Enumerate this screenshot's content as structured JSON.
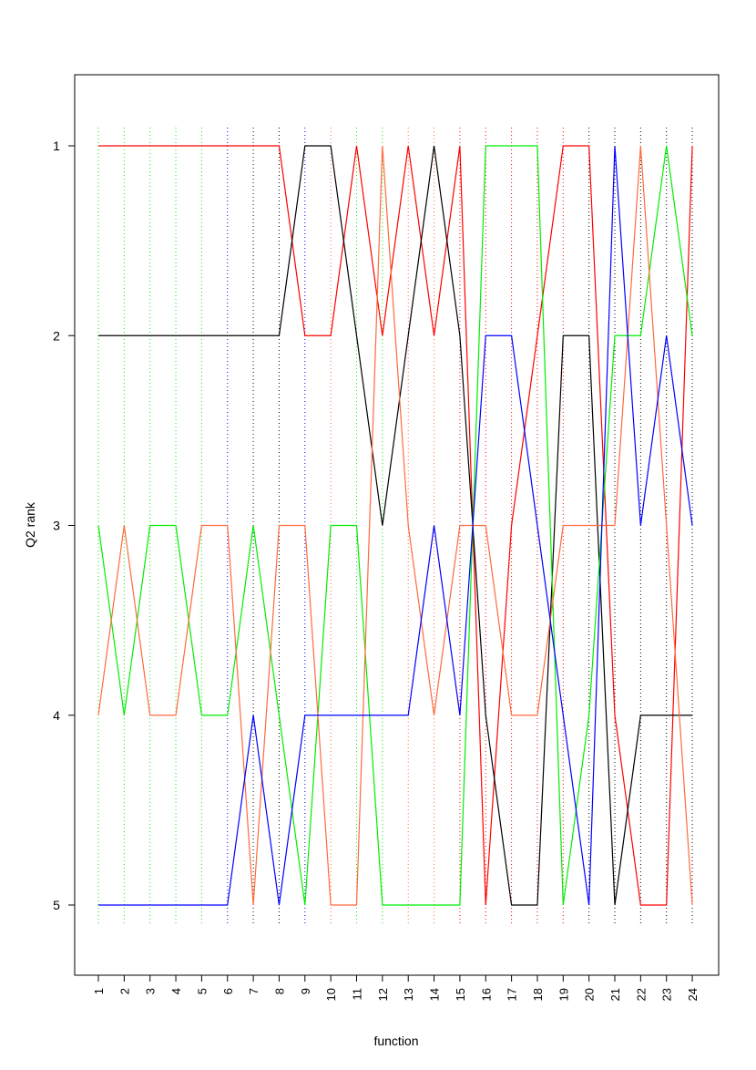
{
  "chart_data": {
    "type": "line",
    "title": "",
    "xlabel": "function",
    "ylabel": "Q2 rank",
    "x": [
      1,
      2,
      3,
      4,
      5,
      6,
      7,
      8,
      9,
      10,
      11,
      12,
      13,
      14,
      15,
      16,
      17,
      18,
      19,
      20,
      21,
      22,
      23,
      24
    ],
    "x_tick_labels": [
      "1",
      "2",
      "3",
      "4",
      "5",
      "6",
      "7",
      "8",
      "9",
      "10",
      "11",
      "12",
      "13",
      "14",
      "15",
      "16",
      "17",
      "18",
      "19",
      "20",
      "21",
      "22",
      "23",
      "24"
    ],
    "y_ticks": [
      1,
      2,
      3,
      4,
      5
    ],
    "y_tick_labels": [
      "1",
      "2",
      "3",
      "4",
      "5"
    ],
    "xlim": [
      0.5,
      24.5
    ],
    "ylim": [
      0.5,
      5.5
    ],
    "y_reversed": true,
    "grid": false,
    "legend": "none",
    "series": [
      {
        "color": "#ff0000",
        "values": [
          1,
          1,
          1,
          1,
          1,
          1,
          1,
          1,
          2,
          2,
          1,
          2,
          1,
          2,
          1,
          5,
          3,
          2,
          1,
          1,
          4,
          5,
          5,
          1
        ]
      },
      {
        "color": "#000000",
        "values": [
          2,
          2,
          2,
          2,
          2,
          2,
          2,
          2,
          1,
          1,
          2,
          3,
          2,
          1,
          2,
          4,
          5,
          5,
          2,
          2,
          5,
          4,
          4,
          4
        ]
      },
      {
        "color": "#00ee00",
        "values": [
          3,
          4,
          3,
          3,
          4,
          4,
          3,
          4,
          5,
          3,
          3,
          5,
          5,
          5,
          5,
          1,
          1,
          1,
          5,
          4,
          2,
          2,
          1,
          2
        ]
      },
      {
        "color": "#ff6a3d",
        "values": [
          4,
          3,
          4,
          4,
          3,
          3,
          5,
          3,
          3,
          5,
          5,
          1,
          3,
          4,
          3,
          3,
          4,
          4,
          3,
          3,
          3,
          1,
          3,
          5
        ]
      },
      {
        "color": "#0000ff",
        "values": [
          5,
          5,
          5,
          5,
          5,
          5,
          4,
          5,
          4,
          4,
          4,
          4,
          4,
          3,
          4,
          2,
          2,
          3,
          4,
          5,
          1,
          3,
          2,
          3
        ]
      }
    ],
    "vertical_guides": [
      {
        "x": 1,
        "color": "#00ee00"
      },
      {
        "x": 2,
        "color": "#00ee00"
      },
      {
        "x": 3,
        "color": "#00ee00"
      },
      {
        "x": 4,
        "color": "#00ee00"
      },
      {
        "x": 5,
        "color": "#00ee00"
      },
      {
        "x": 6,
        "color": "#0000ff"
      },
      {
        "x": 7,
        "color": "#000000"
      },
      {
        "x": 8,
        "color": "#000000"
      },
      {
        "x": 9,
        "color": "#0000ff"
      },
      {
        "x": 10,
        "color": "#ff6a3d"
      },
      {
        "x": 11,
        "color": "#00ee00"
      },
      {
        "x": 12,
        "color": "#00ee00"
      },
      {
        "x": 13,
        "color": "#ff6a3d"
      },
      {
        "x": 14,
        "color": "#ff6a3d"
      },
      {
        "x": 15,
        "color": "#ff0000"
      },
      {
        "x": 16,
        "color": "#ff0000"
      },
      {
        "x": 17,
        "color": "#ff0000"
      },
      {
        "x": 18,
        "color": "#ff0000"
      },
      {
        "x": 19,
        "color": "#ff0000"
      },
      {
        "x": 20,
        "color": "#000000"
      },
      {
        "x": 21,
        "color": "#000000"
      },
      {
        "x": 22,
        "color": "#000000"
      },
      {
        "x": 23,
        "color": "#000000"
      },
      {
        "x": 24,
        "color": "#000000"
      }
    ]
  }
}
